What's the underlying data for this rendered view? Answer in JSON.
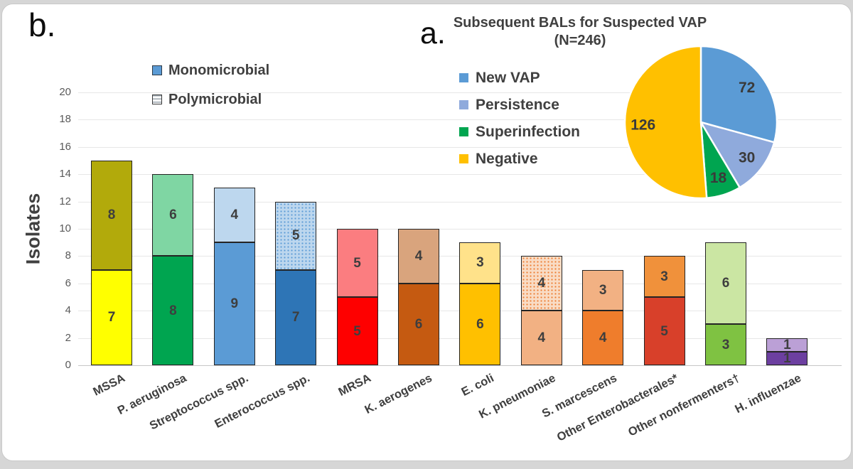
{
  "chart_data": [
    {
      "type": "bar",
      "stacked": true,
      "panel_label": "b.",
      "ylabel": "Isolates",
      "ylim": [
        0,
        20
      ],
      "ytick_step": 2,
      "grid": true,
      "legend_position": "top-inside-left",
      "categories": [
        "MSSA",
        "P. aeruginosa",
        "Streptococcus spp.",
        "Enterococcus spp.",
        "MRSA",
        "K. aerogenes",
        "E. coli",
        "K. pneumoniae",
        "S. marcescens",
        "Other Enterobacterales*",
        "Other nonfermenters†",
        "H. influenzae"
      ],
      "series": [
        {
          "name": "Monomicrobial",
          "values": [
            7,
            8,
            9,
            7,
            5,
            6,
            6,
            4,
            4,
            5,
            3,
            1
          ],
          "swatch_color": "#5B9BD5",
          "swatch_style": "solid"
        },
        {
          "name": "Polymicrobial",
          "values": [
            8,
            6,
            4,
            5,
            5,
            4,
            3,
            4,
            3,
            3,
            6,
            1
          ],
          "swatch_color": "#FFFFFF",
          "swatch_style": "striped"
        }
      ],
      "totals": [
        15,
        14,
        13,
        12,
        10,
        10,
        9,
        8,
        7,
        8,
        9,
        2
      ],
      "colors": {
        "mono": [
          "#FFFF00",
          "#00A550",
          "#5B9BD5",
          "#2E75B6",
          "#FE0000",
          "#C55A11",
          "#FFC000",
          "#F2B183",
          "#EF7D2C",
          "#D8402A",
          "#7FC242",
          "#6C3FA0"
        ],
        "poly": [
          "#B2AA0B",
          "#7FD6A3",
          "#BDD7EE",
          "#BDD7EE",
          "#FB7D80",
          "#D9A47D",
          "#FFE28A",
          "#F9DCC5",
          "#F2B183",
          "#F0913B",
          "#CBE6A3",
          "#BBA0D6"
        ],
        "poly_dots": [
          null,
          null,
          null,
          "#5B9BD5",
          null,
          null,
          null,
          "#ED7D31",
          null,
          null,
          null,
          null
        ]
      }
    },
    {
      "type": "pie",
      "panel_label": "a.",
      "title": "Subsequent BALs for Suspected VAP",
      "subtitle": "(N=246)",
      "total": 246,
      "legend_position": "left",
      "labels": [
        "New VAP",
        "Persistence",
        "Superinfection",
        "Negative"
      ],
      "values": [
        72,
        30,
        18,
        126
      ],
      "colors": [
        "#5B9BD5",
        "#8FAADC",
        "#00A550",
        "#FFC000"
      ]
    }
  ]
}
